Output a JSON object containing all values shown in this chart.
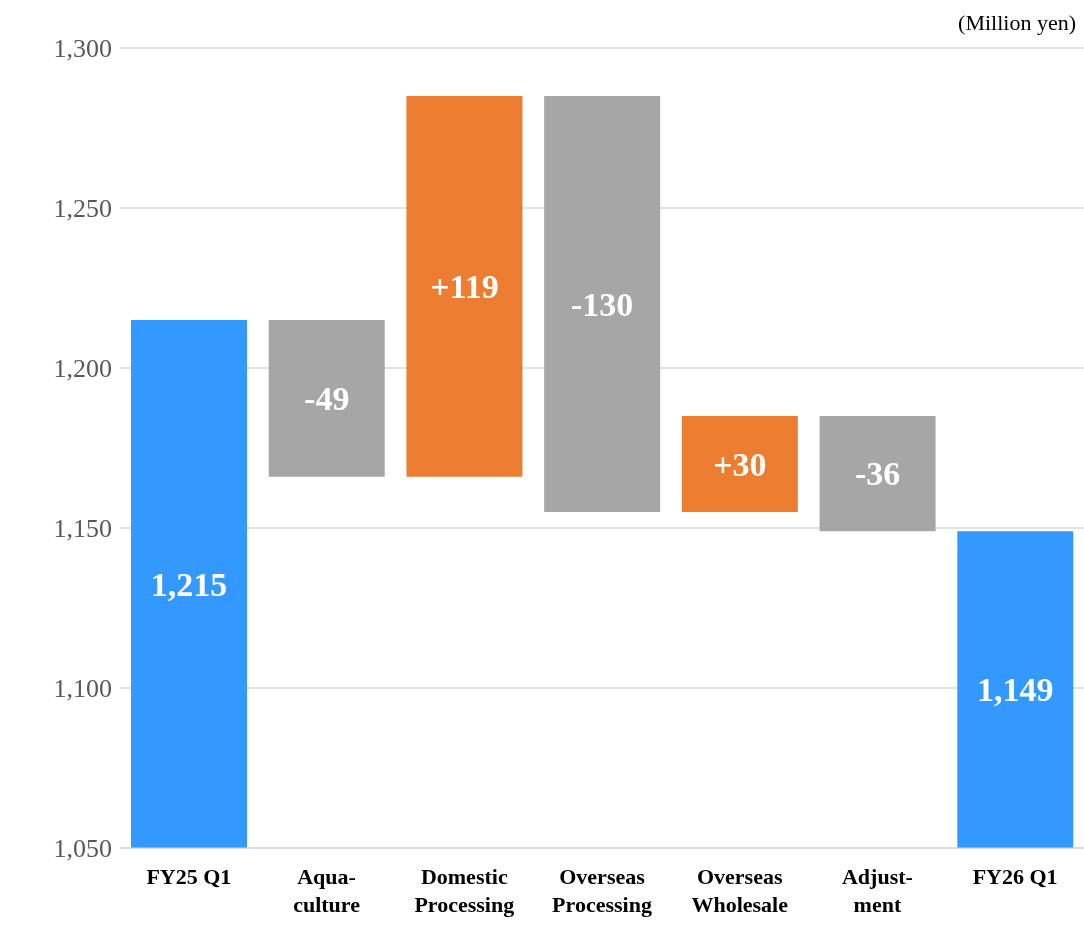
{
  "chart_data": {
    "type": "bar",
    "categories": [
      "FY25 Q1",
      "Aqua-\nculture",
      "Domestic\nProcessing",
      "Overseas\nProcessing",
      "Overseas\nWholesale",
      "Adjust-\nment",
      "FY26 Q1"
    ],
    "values": [
      1215,
      -49,
      119,
      -130,
      30,
      -36,
      1149
    ],
    "base": [
      null,
      1215,
      1166,
      1285,
      1155,
      1185,
      null
    ],
    "colors": [
      "#3399ff",
      "#a6a6a6",
      "#ed7d31",
      "#a6a6a6",
      "#ed7d31",
      "#a6a6a6",
      "#3399ff"
    ],
    "value_labels": [
      "1,215",
      "-49",
      "+119",
      "-130",
      "+30",
      "-36",
      "1,149"
    ],
    "ylim": [
      1050,
      1300
    ],
    "yticks": [
      {
        "value": 1050,
        "label": "1,050"
      },
      {
        "value": 1100,
        "label": "1,100"
      },
      {
        "value": 1150,
        "label": "1,150"
      },
      {
        "value": 1200,
        "label": "1,200"
      },
      {
        "value": 1250,
        "label": "1,250"
      },
      {
        "value": 1300,
        "label": "1,300"
      }
    ],
    "grid": "y",
    "legend": false,
    "annotations": [
      "(Million yen)"
    ]
  }
}
